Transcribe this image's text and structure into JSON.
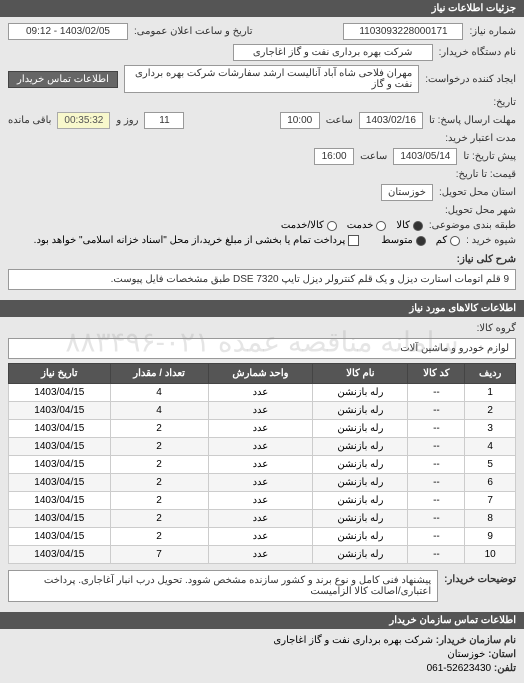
{
  "header1": "جزئیات اطلاعات نیاز",
  "need": {
    "labels": {
      "reqNumber": "شماره نیاز:",
      "buyerDevice": "نام دستگاه خریدار:",
      "requester": "ایجاد کننده درخواست:",
      "creditDate": "تاریخ:",
      "responseDeadline": "مهلت ارسال پاسخ: تا",
      "validDate": "مدت اعتبار خرید:",
      "validUntil": "پیش تاریخ: تا",
      "price": "قیمت: تا تاریخ:",
      "deliveryState": "استان محل تحویل:",
      "deliveryCity": "شهر محل تحویل:",
      "budgetType": "طبقه بندی موضوعی:",
      "budgetSource": "شیوه خرید :",
      "announceDate": "تاریخ و ساعت اعلان عمومی:",
      "hour": "ساعت",
      "day": "روز و",
      "remain": "باقی مانده",
      "contactBtn": "اطلاعات تماس خریدار"
    },
    "reqNumber": "1103093228000171",
    "announceDate": "1403/02/05 - 09:12",
    "buyerDevice": "شرکت بهره برداری نفت و گاز اغاجاری",
    "requester": "مهران فلاحی شاه آباد آنالیست ارشد سفارشات شرکت بهره برداری نفت و گاز",
    "deadlineDate": "1403/02/16",
    "deadlineHour": "10:00",
    "deadlineDays": "11",
    "timer": "00:35:32",
    "validDate": "1403/05/14",
    "validHour": "16:00",
    "deliveryState": "خوزستان",
    "radios": {
      "goods": "کالا",
      "service": "خدمت",
      "both": "کالا/خدمت"
    },
    "sourceRadios": {
      "low": "کم",
      "mid": "متوسط"
    },
    "checkboxNote": "پرداخت تمام یا بخشی از مبلغ خرید،از محل \"اسناد خزانه اسلامی\" خواهد بود.",
    "generalDescLabel": "شرح کلی نیاز:",
    "generalDesc": "9 قلم اتومات استارت دیزل و یک قلم کنترولر دیزل تایپ DSE 7320 طبق مشخصات فایل پیوست."
  },
  "goodsHeader": "اطلاعات کالاهای مورد نیاز",
  "goods": {
    "groupLabel": "گروه کالا:",
    "groupValue": "لوازم خودرو و ماشین آلات",
    "columns": [
      "ردیف",
      "کد کالا",
      "نام کالا",
      "واحد شمارش",
      "تعداد / مقدار",
      "تاریخ نیاز"
    ],
    "rows": [
      [
        "1",
        "--",
        "رله بازنشن",
        "عدد",
        "4",
        "1403/04/15"
      ],
      [
        "2",
        "--",
        "رله بازنشن",
        "عدد",
        "4",
        "1403/04/15"
      ],
      [
        "3",
        "--",
        "رله بازنشن",
        "عدد",
        "2",
        "1403/04/15"
      ],
      [
        "4",
        "--",
        "رله بازنشن",
        "عدد",
        "2",
        "1403/04/15"
      ],
      [
        "5",
        "--",
        "رله بازنشن",
        "عدد",
        "2",
        "1403/04/15"
      ],
      [
        "6",
        "--",
        "رله بازنشن",
        "عدد",
        "2",
        "1403/04/15"
      ],
      [
        "7",
        "--",
        "رله بازنشن",
        "عدد",
        "2",
        "1403/04/15"
      ],
      [
        "8",
        "--",
        "رله بازنشن",
        "عدد",
        "2",
        "1403/04/15"
      ],
      [
        "9",
        "--",
        "رله بازنشن",
        "عدد",
        "2",
        "1403/04/15"
      ],
      [
        "10",
        "--",
        "رله بازنشن",
        "عدد",
        "7",
        "1403/04/15"
      ]
    ],
    "noteLabel": "توضیحات خریدار:",
    "noteValue": "پیشنهاد فنی کامل و نوع برند و کشور سازنده مشخص شوود. تحویل درب انبار آغاجاری. پرداخت اعتباری/اصالت کالا الزامیست"
  },
  "contactHeader": "اطلاعات تماس سازمان خریدار",
  "contact": {
    "orgLabel": "نام سازمان خریدار:",
    "orgValue": "شرکت بهره برداری نفت و گاز اغاجاری",
    "stateLabel": "استان:",
    "stateValue": "خوزستان",
    "phoneLabel": "تلفن:",
    "phoneValue": "52623430-061"
  },
  "watermark": "سامانه مناقصه عمده ۰۲۱-۸۸۳۴۹۶"
}
